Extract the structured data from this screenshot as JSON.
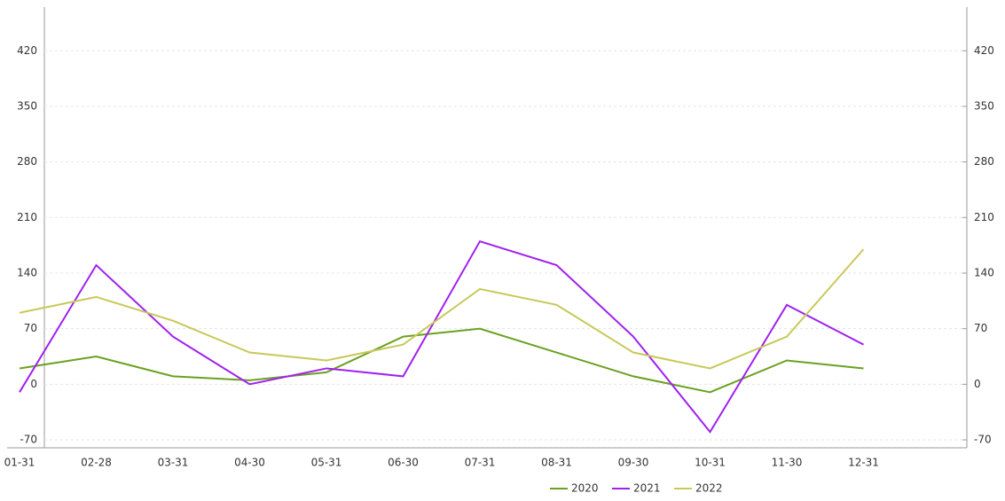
{
  "chart_data": {
    "type": "line",
    "categories": [
      "01-31",
      "02-28",
      "03-31",
      "04-30",
      "05-31",
      "06-30",
      "07-31",
      "08-31",
      "09-30",
      "10-31",
      "11-30",
      "12-31"
    ],
    "series": [
      {
        "name": "2020",
        "color": "#6aa121",
        "values": [
          20,
          35,
          10,
          5,
          15,
          60,
          70,
          40,
          10,
          -10,
          30,
          20
        ]
      },
      {
        "name": "2021",
        "color": "#a020f0",
        "values": [
          -10,
          150,
          60,
          0,
          20,
          10,
          180,
          150,
          60,
          -60,
          100,
          50
        ]
      },
      {
        "name": "2022",
        "color": "#c8c85a",
        "values": [
          90,
          110,
          80,
          40,
          30,
          50,
          120,
          100,
          40,
          20,
          60,
          170
        ]
      }
    ],
    "ylim": [
      -80,
      475
    ],
    "yticks": [
      -70,
      0,
      70,
      140,
      210,
      280,
      350,
      420
    ],
    "y2lim": [
      -80,
      475
    ],
    "y2ticks": [
      -70,
      0,
      70,
      140,
      210,
      280,
      350,
      420
    ],
    "grid": true,
    "legend": "bottom"
  }
}
